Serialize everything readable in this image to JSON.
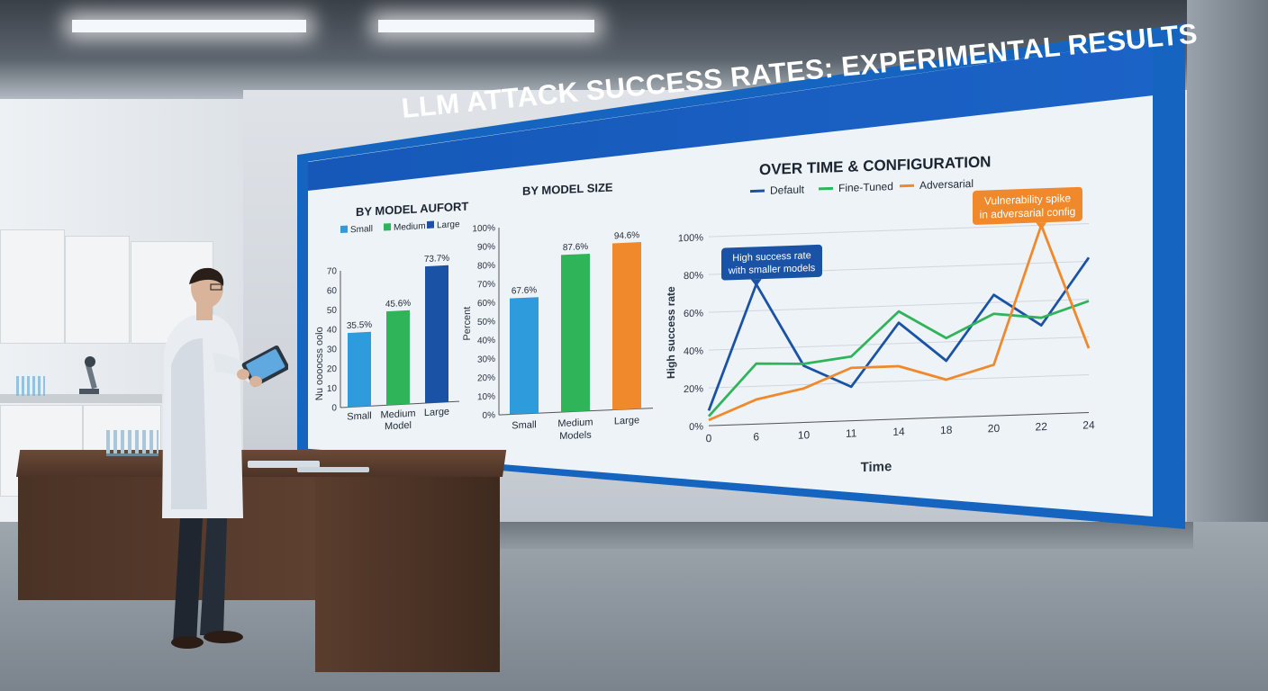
{
  "screen": {
    "title": "LLM ATTACK SUCCESS RATES: EXPERIMENTAL RESULTS"
  },
  "chart_data": [
    {
      "type": "bar",
      "title": "BY MODEL AUFORT",
      "ylabel": "Nu oooocss oolo",
      "xlabel": "",
      "categories": [
        "Small",
        "Medium Model",
        "Large"
      ],
      "values": [
        35.5,
        45.6,
        73.7
      ],
      "data_labels": [
        "35.5%",
        "45.6%",
        "73.7%"
      ],
      "legend": [
        "Small",
        "Medium",
        "Large"
      ],
      "colors": [
        "#2e9bdc",
        "#2fb45a",
        "#1a53a6"
      ],
      "bar_heights_read": [
        38,
        48,
        70
      ],
      "yticks": [
        "0",
        "10",
        "20",
        "30",
        "40",
        "50",
        "60",
        "70"
      ],
      "ylim": [
        0,
        70
      ]
    },
    {
      "type": "bar",
      "title": "BY MODEL SIZE",
      "ylabel": "Percent",
      "xlabel": "",
      "categories": [
        "Small",
        "Medium Models",
        "Large"
      ],
      "values": [
        67.6,
        87.6,
        94.6
      ],
      "data_labels": [
        "67.6%",
        "87.6%",
        "94.6%"
      ],
      "colors": [
        "#2e9bdc",
        "#2fb45a",
        "#f0892c"
      ],
      "bar_heights_read": [
        62,
        84,
        89
      ],
      "yticks": [
        "0%",
        "10%",
        "20%",
        "30%",
        "40%",
        "50%",
        "60%",
        "70%",
        "80%",
        "90%",
        "100%"
      ],
      "ylim": [
        0,
        100
      ]
    },
    {
      "type": "line",
      "title": "OVER TIME & CONFIGURATION",
      "xlabel": "Time",
      "ylabel": "High success rate",
      "x": [
        0,
        6,
        10,
        11,
        14,
        18,
        20,
        22,
        24
      ],
      "xticks": [
        "0",
        "6",
        "10",
        "11",
        "14",
        "18",
        "20",
        "22",
        "24"
      ],
      "yticks": [
        "0%",
        "20%",
        "40%",
        "60%",
        "80%",
        "100%"
      ],
      "ylim": [
        0,
        100
      ],
      "series": [
        {
          "name": "Default",
          "color": "#1a53a6",
          "values": [
            8,
            74,
            30,
            18,
            51,
            30,
            64,
            47,
            82
          ]
        },
        {
          "name": "Fine-Tuned",
          "color": "#2fb45a",
          "values": [
            5,
            32,
            31,
            34,
            57,
            42,
            54,
            51,
            59
          ]
        },
        {
          "name": "Adversarial",
          "color": "#f0892c",
          "values": [
            3,
            13,
            18,
            28,
            28,
            20,
            27,
            100,
            34
          ]
        }
      ],
      "annotations": [
        {
          "text": "High success rate with smaller models",
          "line1": "High success rate",
          "line2": "with smaller models",
          "color": "#1a53a6"
        },
        {
          "text": "Vulnerability spike in adversarial config",
          "line1": "Vulnerability spike",
          "line2": "in adversarial config",
          "color": "#f0892c"
        }
      ]
    }
  ]
}
